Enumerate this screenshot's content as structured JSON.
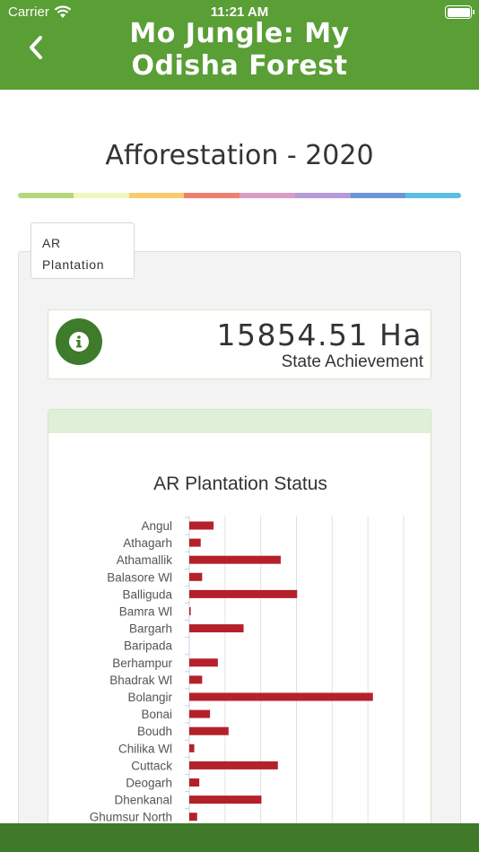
{
  "status_bar": {
    "carrier": "Carrier",
    "time": "11:21 AM"
  },
  "header": {
    "title_line1": "Mo Jungle: My",
    "title_line2": "Odisha Forest",
    "background": "#5a9e36"
  },
  "page": {
    "title": "Afforestation - 2020",
    "stripe_colors": [
      "#b5d77a",
      "#eef7c1",
      "#f7cb6e",
      "#ee7f70",
      "#d99ec6",
      "#b59bd8",
      "#6b96d6",
      "#5cbfe0"
    ]
  },
  "tab": {
    "line1": "AR",
    "line2": "Plantation"
  },
  "achievement": {
    "value": "15854.51 Ha",
    "label": "State Achievement",
    "icon": "info-icon"
  },
  "chart_data": {
    "type": "bar",
    "orientation": "horizontal",
    "title": "AR Plantation Status",
    "categories": [
      "Angul",
      "Athagarh",
      "Athamallik",
      "Balasore Wl",
      "Balliguda",
      "Bamra Wl",
      "Bargarh",
      "Baripada",
      "Berhampur",
      "Bhadrak Wl",
      "Bolangir",
      "Bonai",
      "Boudh",
      "Chilika Wl",
      "Cuttack",
      "Deogarh",
      "Dhenkanal",
      "Ghumsur North"
    ],
    "values": [
      340,
      160,
      1280,
      180,
      1510,
      20,
      760,
      0,
      400,
      180,
      2570,
      290,
      550,
      70,
      1240,
      140,
      1010,
      110
    ],
    "xlim": [
      0,
      3000
    ],
    "grid": true,
    "color": "#b4212a"
  },
  "theme": {
    "bottom_bar": "#3f7a2b",
    "accent": "#3e7b2a"
  }
}
